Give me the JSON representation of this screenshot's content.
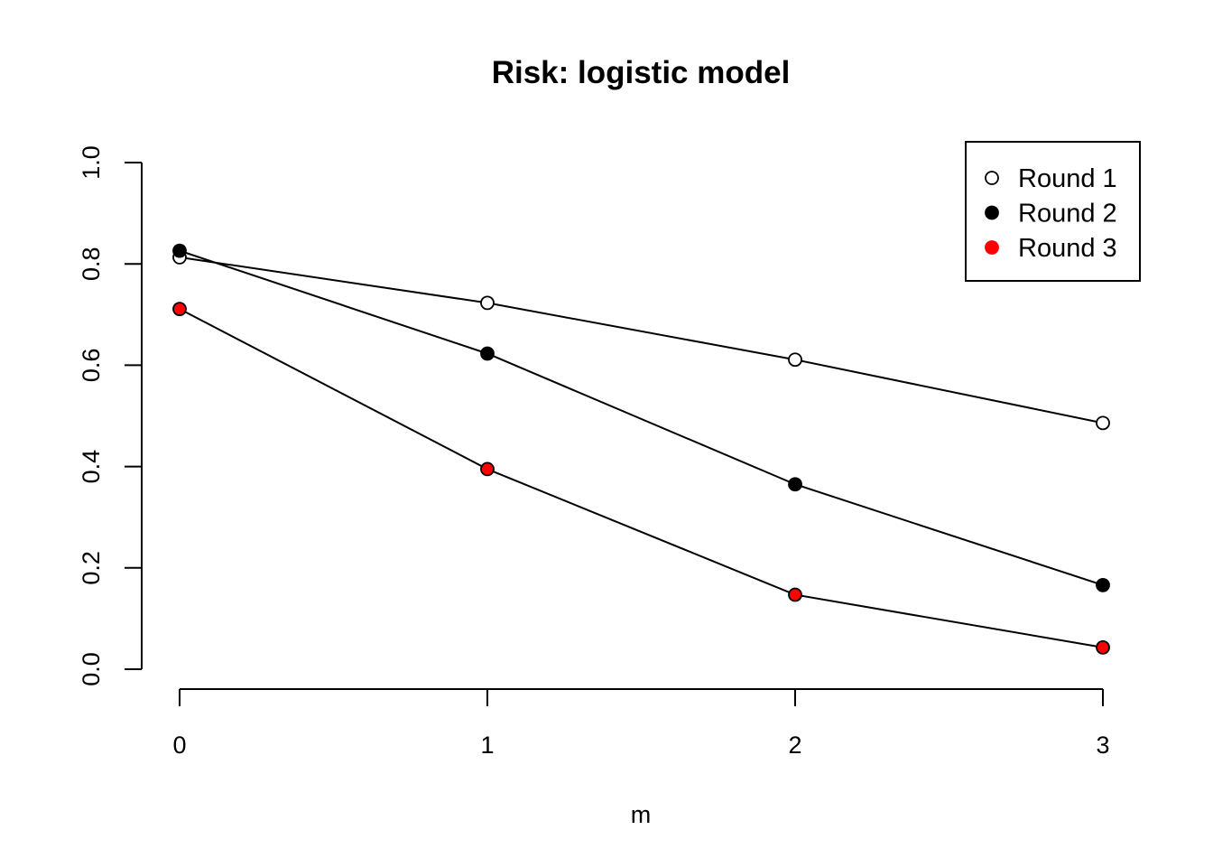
{
  "chart_data": {
    "type": "line",
    "title": "Risk: logistic model",
    "xlabel": "m",
    "ylabel": "",
    "x": [
      0,
      1,
      2,
      3
    ],
    "xlim": [
      0,
      3
    ],
    "ylim": [
      0,
      1
    ],
    "xticks": [
      "0",
      "1",
      "2",
      "3"
    ],
    "yticks": [
      "0.0",
      "0.2",
      "0.4",
      "0.6",
      "0.8",
      "1.0"
    ],
    "grid": false,
    "legend_position": "top-right",
    "series": [
      {
        "name": "Round 1",
        "values": [
          0.813,
          0.723,
          0.611,
          0.486
        ],
        "marker_fill": "#ffffff"
      },
      {
        "name": "Round 2",
        "values": [
          0.826,
          0.623,
          0.365,
          0.166
        ],
        "marker_fill": "#000000"
      },
      {
        "name": "Round 3",
        "values": [
          0.711,
          0.395,
          0.147,
          0.043
        ],
        "marker_fill": "#ff0000"
      }
    ]
  }
}
